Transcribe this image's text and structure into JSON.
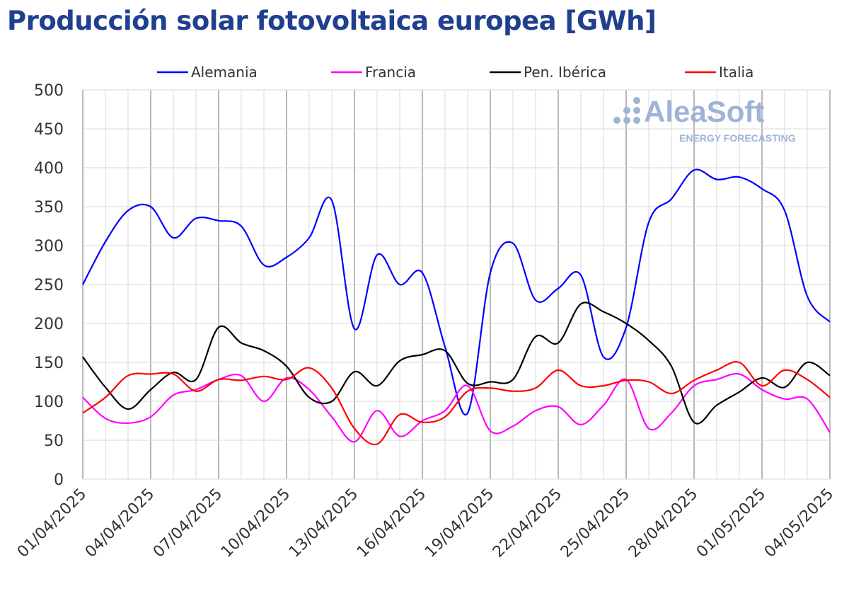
{
  "chart_data": {
    "type": "line",
    "title": "Producción solar fotovoltaica europea [GWh]",
    "xlabel": "",
    "ylabel": "",
    "ylim": [
      0,
      500
    ],
    "yticks": [
      0,
      50,
      100,
      150,
      200,
      250,
      300,
      350,
      400,
      450,
      500
    ],
    "xtick_labels": [
      "01/04/2025",
      "04/04/2025",
      "07/04/2025",
      "10/04/2025",
      "13/04/2025",
      "16/04/2025",
      "19/04/2025",
      "22/04/2025",
      "25/04/2025",
      "28/04/2025",
      "01/05/2025",
      "04/05/2025"
    ],
    "x_start": "01/04/2025",
    "days": 34,
    "legend_position": "top",
    "grid": true,
    "series": [
      {
        "name": "Alemania",
        "color": "#0000ff",
        "values": [
          250,
          305,
          345,
          350,
          310,
          335,
          332,
          325,
          275,
          285,
          310,
          358,
          193,
          288,
          250,
          265,
          170,
          85,
          265,
          303,
          230,
          245,
          262,
          157,
          195,
          330,
          360,
          397,
          385,
          388,
          373,
          345,
          235,
          202
        ]
      },
      {
        "name": "Francia",
        "color": "#ff00ff",
        "values": [
          105,
          78,
          72,
          80,
          108,
          115,
          128,
          133,
          100,
          130,
          115,
          80,
          48,
          88,
          55,
          75,
          88,
          120,
          62,
          68,
          88,
          93,
          70,
          95,
          128,
          65,
          85,
          120,
          128,
          135,
          115,
          103,
          103,
          60
        ]
      },
      {
        "name": "Pen. Ibérica",
        "color": "#000000",
        "values": [
          157,
          118,
          90,
          115,
          137,
          128,
          195,
          175,
          165,
          145,
          105,
          100,
          138,
          120,
          152,
          160,
          165,
          123,
          125,
          128,
          183,
          175,
          225,
          215,
          200,
          178,
          145,
          73,
          95,
          112,
          130,
          118,
          150,
          133
        ]
      },
      {
        "name": "Italia",
        "color": "#ff0000",
        "values": [
          85,
          105,
          133,
          135,
          135,
          113,
          128,
          127,
          132,
          128,
          143,
          117,
          65,
          45,
          83,
          73,
          80,
          113,
          117,
          113,
          117,
          140,
          120,
          120,
          127,
          125,
          110,
          127,
          140,
          150,
          120,
          140,
          128,
          105
        ]
      }
    ]
  },
  "watermark": {
    "brand": "AleaSoft",
    "tagline": "ENERGY FORECASTING"
  }
}
